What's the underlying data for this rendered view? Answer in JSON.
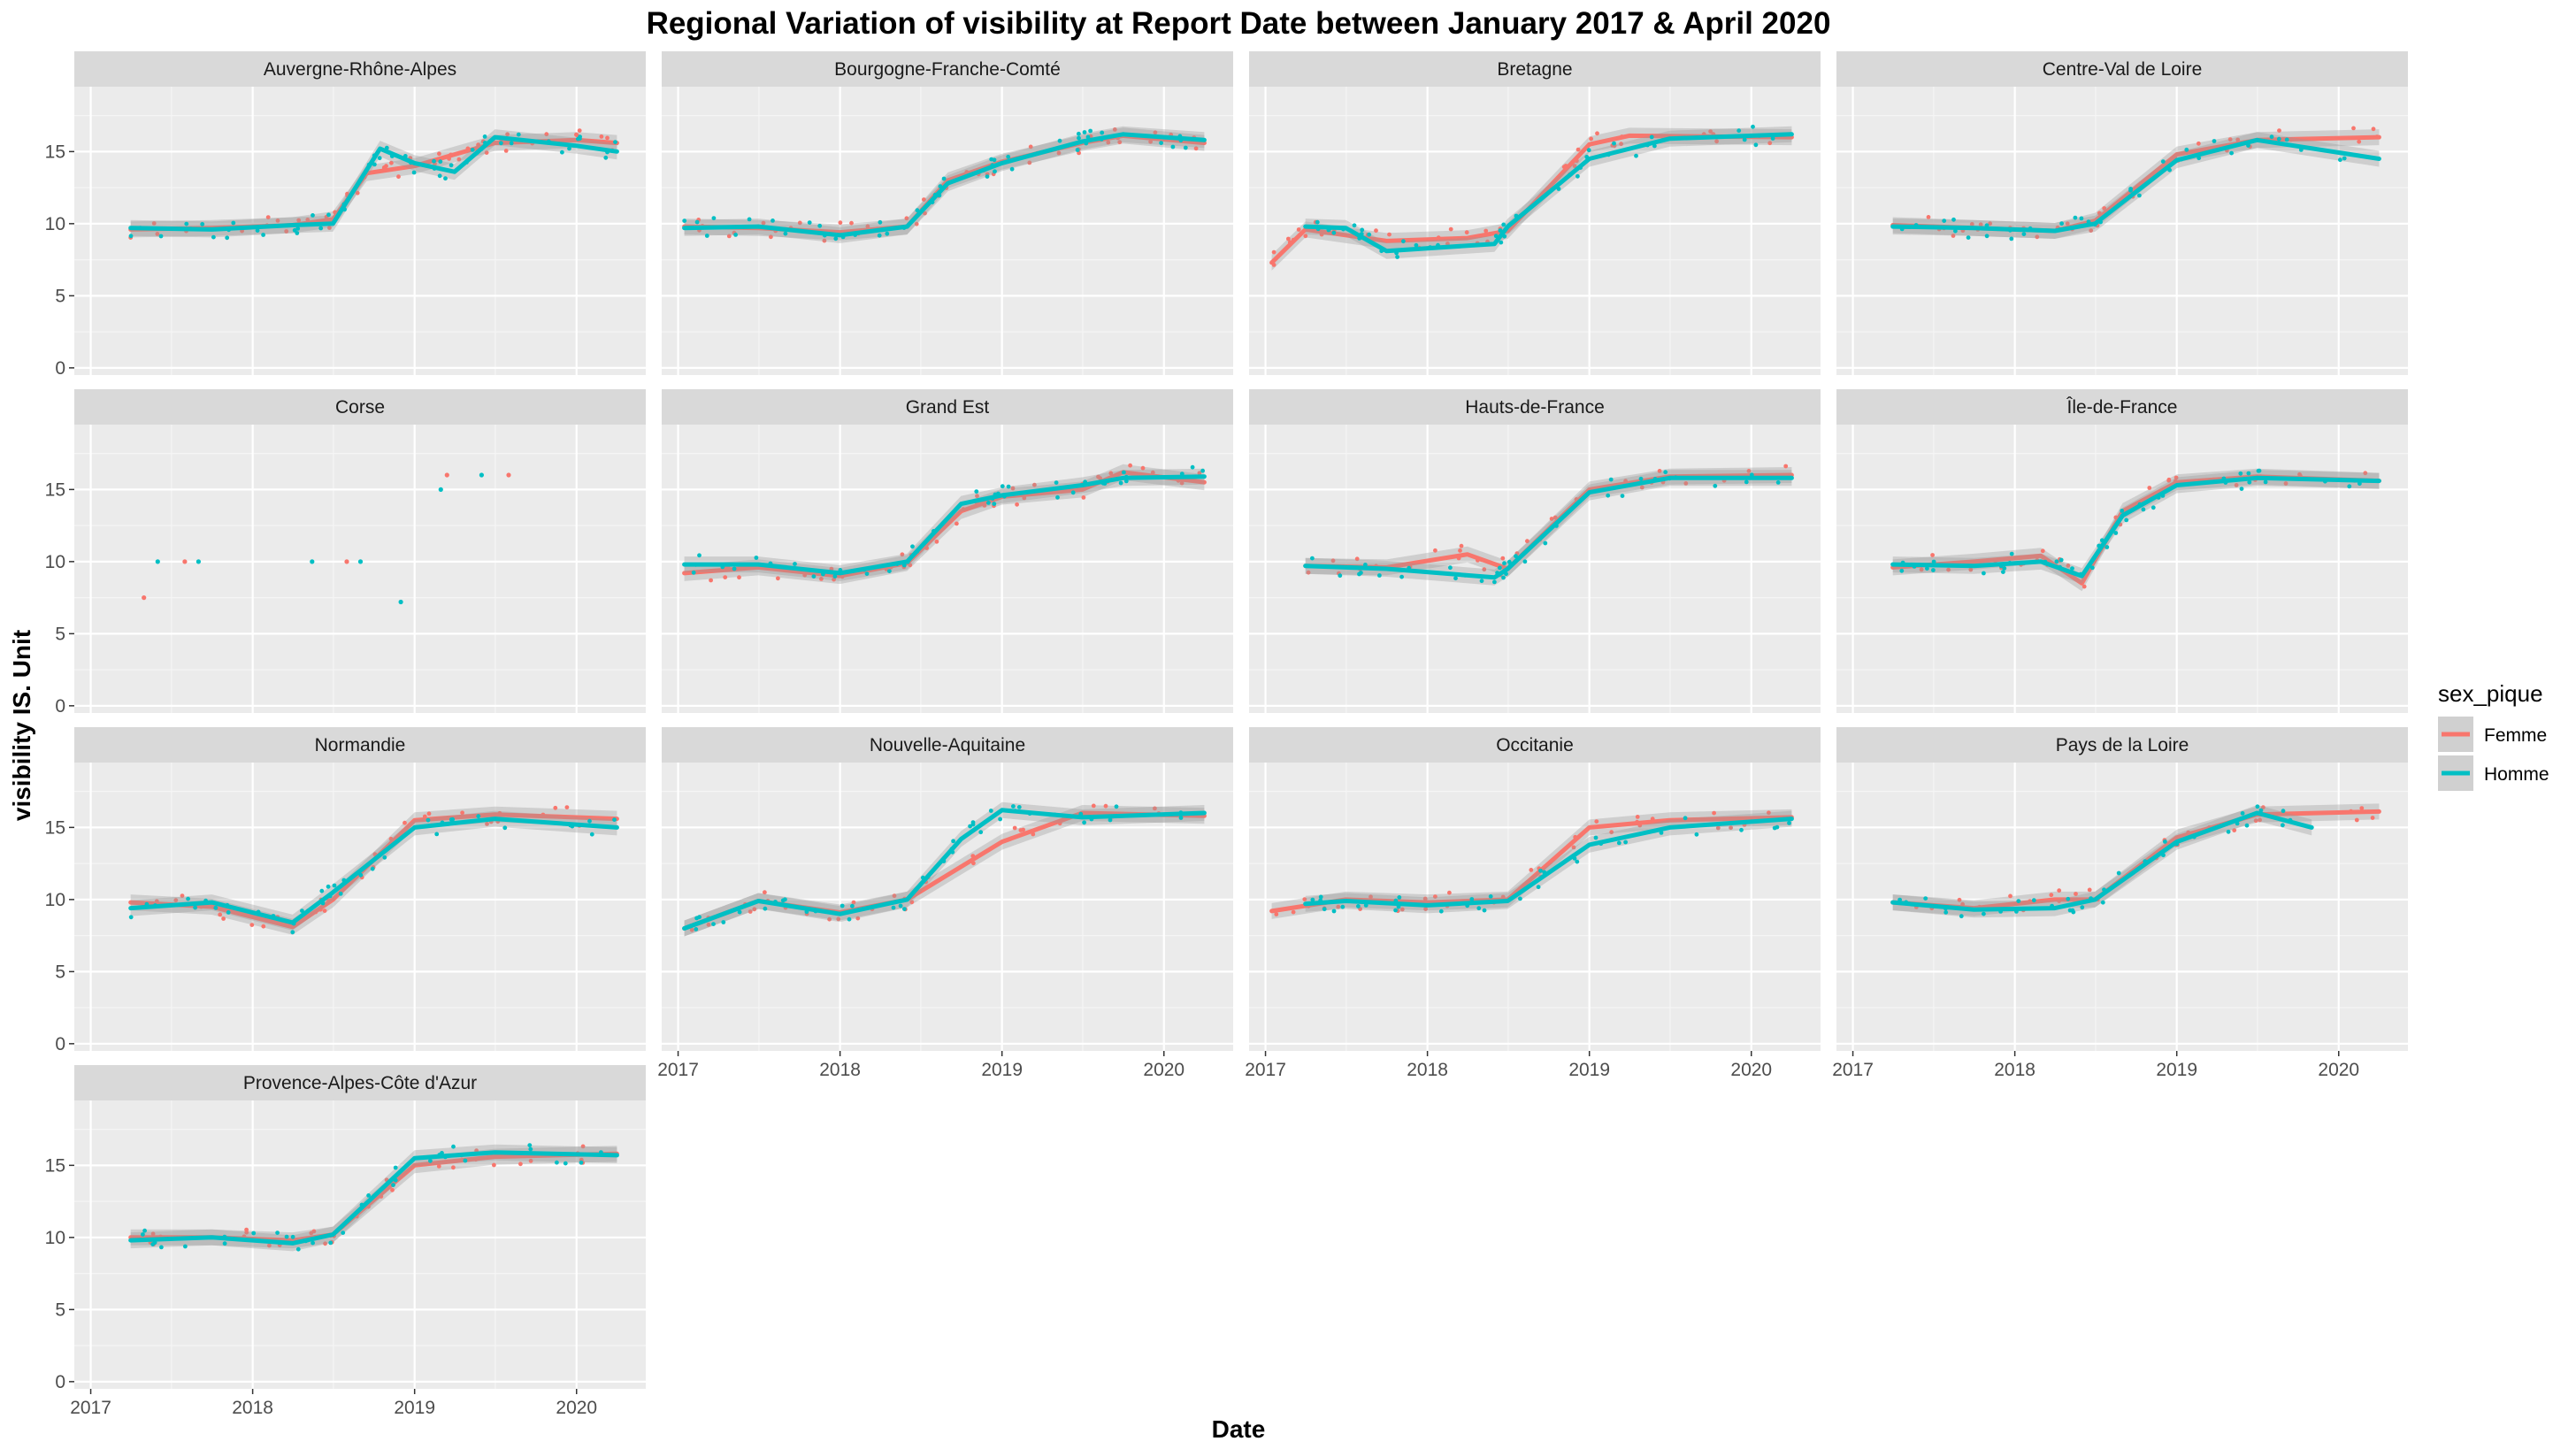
{
  "chart_data": {
    "type": "line",
    "title": "Regional Variation of  visibility  at Report Date between January 2017 & April 2020",
    "xlabel": "Date",
    "ylabel": "visibility  IS. Unit",
    "x_ticks": [
      "2017",
      "2018",
      "2019",
      "2020"
    ],
    "y_ticks": [
      "0",
      "5",
      "10",
      "15"
    ],
    "xlim": [
      "2016-11-25",
      "2020-06-05"
    ],
    "ylim": [
      -0.5,
      19.5
    ],
    "grid": true,
    "legend": {
      "title": "sex_pique",
      "position": "right",
      "entries": [
        {
          "name": "Femme",
          "color": "#F8766D"
        },
        {
          "name": "Homme",
          "color": "#00BFC4"
        }
      ]
    },
    "panels": [
      {
        "name": "Auvergne-Rhône-Alpes",
        "series": [
          {
            "name": "Femme",
            "x": [
              "2017-04-01",
              "2017-10-01",
              "2018-04-01",
              "2018-07-01",
              "2018-09-15",
              "2019-01-01",
              "2019-04-01",
              "2019-07-01",
              "2020-01-01",
              "2020-04-01"
            ],
            "y": [
              9.6,
              9.7,
              9.9,
              10.3,
              13.5,
              14.0,
              14.8,
              15.6,
              15.8,
              15.6
            ]
          },
          {
            "name": "Homme",
            "x": [
              "2017-04-01",
              "2017-10-01",
              "2018-04-01",
              "2018-07-01",
              "2018-10-15",
              "2019-01-01",
              "2019-04-01",
              "2019-07-01",
              "2020-01-01",
              "2020-04-01"
            ],
            "y": [
              9.7,
              9.6,
              9.9,
              10.0,
              15.2,
              14.2,
              13.6,
              16.0,
              15.4,
              15.0
            ]
          }
        ]
      },
      {
        "name": "Bourgogne-Franche-Comté",
        "series": [
          {
            "name": "Femme",
            "x": [
              "2017-01-15",
              "2017-07-01",
              "2018-01-01",
              "2018-06-01",
              "2018-09-01",
              "2019-01-01",
              "2019-07-01",
              "2019-10-01",
              "2020-04-01"
            ],
            "y": [
              9.8,
              9.7,
              9.4,
              9.8,
              13.0,
              14.3,
              15.6,
              16.1,
              15.6
            ]
          },
          {
            "name": "Homme",
            "x": [
              "2017-01-15",
              "2017-07-01",
              "2018-01-01",
              "2018-06-01",
              "2018-09-01",
              "2019-01-01",
              "2019-07-01",
              "2019-10-01",
              "2020-04-01"
            ],
            "y": [
              9.7,
              9.8,
              9.2,
              9.8,
              12.8,
              14.2,
              15.7,
              16.2,
              15.8
            ]
          }
        ]
      },
      {
        "name": "Bretagne",
        "series": [
          {
            "name": "Femme",
            "x": [
              "2017-01-15",
              "2017-04-01",
              "2017-10-01",
              "2018-04-01",
              "2018-07-01",
              "2019-01-01",
              "2019-04-01",
              "2020-04-01"
            ],
            "y": [
              7.3,
              9.6,
              8.8,
              9.0,
              9.5,
              15.5,
              16.1,
              16.0
            ]
          },
          {
            "name": "Homme",
            "x": [
              "2017-04-01",
              "2017-07-01",
              "2017-10-01",
              "2018-06-01",
              "2018-07-01",
              "2019-01-01",
              "2019-07-01",
              "2020-04-01"
            ],
            "y": [
              9.8,
              9.7,
              8.1,
              8.6,
              9.8,
              14.5,
              15.9,
              16.2
            ]
          }
        ]
      },
      {
        "name": "Centre-Val de Loire",
        "series": [
          {
            "name": "Femme",
            "x": [
              "2017-04-01",
              "2017-10-01",
              "2018-04-01",
              "2018-07-01",
              "2019-01-01",
              "2019-07-01",
              "2020-04-01"
            ],
            "y": [
              9.9,
              9.7,
              9.5,
              10.2,
              14.8,
              15.8,
              16.0
            ]
          },
          {
            "name": "Homme",
            "x": [
              "2017-04-01",
              "2017-10-01",
              "2018-04-01",
              "2018-07-01",
              "2019-01-01",
              "2019-07-01",
              "2020-04-01"
            ],
            "y": [
              9.8,
              9.7,
              9.5,
              10.0,
              14.4,
              15.8,
              14.5
            ]
          }
        ]
      },
      {
        "name": "Corse",
        "series": []
      },
      {
        "name": "Grand Est",
        "series": [
          {
            "name": "Femme",
            "x": [
              "2017-01-15",
              "2017-07-01",
              "2018-01-01",
              "2018-06-01",
              "2018-10-01",
              "2019-01-01",
              "2019-07-01",
              "2019-10-01",
              "2020-04-01"
            ],
            "y": [
              9.2,
              9.6,
              9.0,
              9.9,
              13.5,
              14.5,
              15.0,
              16.2,
              15.5
            ]
          },
          {
            "name": "Homme",
            "x": [
              "2017-01-15",
              "2017-07-01",
              "2018-01-01",
              "2018-06-01",
              "2018-10-01",
              "2019-01-01",
              "2019-07-01",
              "2019-10-01",
              "2020-04-01"
            ],
            "y": [
              9.8,
              9.8,
              9.2,
              10.0,
              14.0,
              14.6,
              15.3,
              15.8,
              15.9
            ]
          }
        ]
      },
      {
        "name": "Hauts-de-France",
        "series": [
          {
            "name": "Femme",
            "x": [
              "2017-04-01",
              "2017-10-01",
              "2018-04-01",
              "2018-07-01",
              "2019-01-01",
              "2019-07-01",
              "2020-04-01"
            ],
            "y": [
              9.7,
              9.6,
              10.5,
              9.5,
              15.0,
              15.9,
              16.0
            ]
          },
          {
            "name": "Homme",
            "x": [
              "2017-04-01",
              "2017-10-01",
              "2018-06-01",
              "2018-07-01",
              "2019-01-01",
              "2019-07-01",
              "2020-04-01"
            ],
            "y": [
              9.7,
              9.5,
              8.9,
              9.5,
              14.8,
              15.8,
              15.8
            ]
          }
        ]
      },
      {
        "name": "Île-de-France",
        "series": [
          {
            "name": "Femme",
            "x": [
              "2017-04-01",
              "2017-10-01",
              "2018-03-01",
              "2018-06-01",
              "2018-09-01",
              "2019-01-01",
              "2019-07-01",
              "2020-04-01"
            ],
            "y": [
              9.6,
              10.0,
              10.4,
              8.5,
              13.5,
              15.5,
              15.9,
              15.6
            ]
          },
          {
            "name": "Homme",
            "x": [
              "2017-04-01",
              "2017-10-01",
              "2018-03-01",
              "2018-06-01",
              "2018-09-01",
              "2019-01-01",
              "2019-07-01",
              "2020-04-01"
            ],
            "y": [
              9.8,
              9.7,
              10.0,
              9.0,
              13.2,
              15.3,
              15.8,
              15.6
            ]
          }
        ]
      },
      {
        "name": "Normandie",
        "series": [
          {
            "name": "Femme",
            "x": [
              "2017-04-01",
              "2017-10-01",
              "2018-04-01",
              "2018-07-01",
              "2019-01-01",
              "2019-07-01",
              "2020-04-01"
            ],
            "y": [
              9.8,
              9.5,
              8.1,
              10.0,
              15.5,
              15.9,
              15.6
            ]
          },
          {
            "name": "Homme",
            "x": [
              "2017-04-01",
              "2017-10-01",
              "2018-04-01",
              "2018-07-01",
              "2019-01-01",
              "2019-07-01",
              "2020-04-01"
            ],
            "y": [
              9.4,
              9.8,
              8.4,
              10.5,
              15.0,
              15.6,
              15.0
            ]
          }
        ]
      },
      {
        "name": "Nouvelle-Aquitaine",
        "series": [
          {
            "name": "Femme",
            "x": [
              "2017-01-15",
              "2017-07-01",
              "2018-01-01",
              "2018-06-01",
              "2019-01-01",
              "2019-07-01",
              "2020-04-01"
            ],
            "y": [
              8.0,
              9.9,
              9.1,
              10.0,
              14.0,
              16.0,
              15.8
            ]
          },
          {
            "name": "Homme",
            "x": [
              "2017-01-15",
              "2017-07-01",
              "2018-01-01",
              "2018-06-01",
              "2018-10-01",
              "2019-01-01",
              "2019-07-01",
              "2020-04-01"
            ],
            "y": [
              8.0,
              9.9,
              9.0,
              10.0,
              14.2,
              16.2,
              15.7,
              16.0
            ]
          }
        ]
      },
      {
        "name": "Occitanie",
        "series": [
          {
            "name": "Femme",
            "x": [
              "2017-01-15",
              "2017-07-01",
              "2018-01-01",
              "2018-07-01",
              "2019-01-01",
              "2019-07-01",
              "2020-04-01"
            ],
            "y": [
              9.2,
              10.0,
              9.8,
              10.0,
              15.0,
              15.5,
              15.7
            ]
          },
          {
            "name": "Homme",
            "x": [
              "2017-04-01",
              "2017-07-01",
              "2018-01-01",
              "2018-07-01",
              "2019-01-01",
              "2019-07-01",
              "2020-04-01"
            ],
            "y": [
              9.7,
              9.9,
              9.6,
              9.9,
              13.8,
              15.0,
              15.6
            ]
          }
        ]
      },
      {
        "name": "Pays de la Loire",
        "series": [
          {
            "name": "Femme",
            "x": [
              "2017-04-01",
              "2017-10-01",
              "2018-04-01",
              "2018-07-01",
              "2019-01-01",
              "2019-07-01",
              "2020-04-01"
            ],
            "y": [
              9.8,
              9.4,
              10.0,
              10.0,
              14.3,
              15.9,
              16.1
            ]
          },
          {
            "name": "Homme",
            "x": [
              "2017-04-01",
              "2017-10-01",
              "2018-04-01",
              "2018-07-01",
              "2019-01-01",
              "2019-07-01",
              "2019-11-01"
            ],
            "y": [
              9.8,
              9.3,
              9.4,
              10.0,
              14.0,
              16.0,
              15.0
            ]
          }
        ]
      },
      {
        "name": "Provence-Alpes-Côte d'Azur",
        "series": [
          {
            "name": "Femme",
            "x": [
              "2017-04-01",
              "2017-10-01",
              "2018-04-01",
              "2018-07-01",
              "2019-01-01",
              "2019-07-01",
              "2020-04-01"
            ],
            "y": [
              10.0,
              10.0,
              9.8,
              10.2,
              15.0,
              15.6,
              15.8
            ]
          },
          {
            "name": "Homme",
            "x": [
              "2017-04-01",
              "2017-10-01",
              "2018-04-01",
              "2018-07-01",
              "2019-01-01",
              "2019-07-01",
              "2020-04-01"
            ],
            "y": [
              9.8,
              10.0,
              9.6,
              10.2,
              15.5,
              15.9,
              15.7
            ]
          }
        ]
      }
    ]
  }
}
